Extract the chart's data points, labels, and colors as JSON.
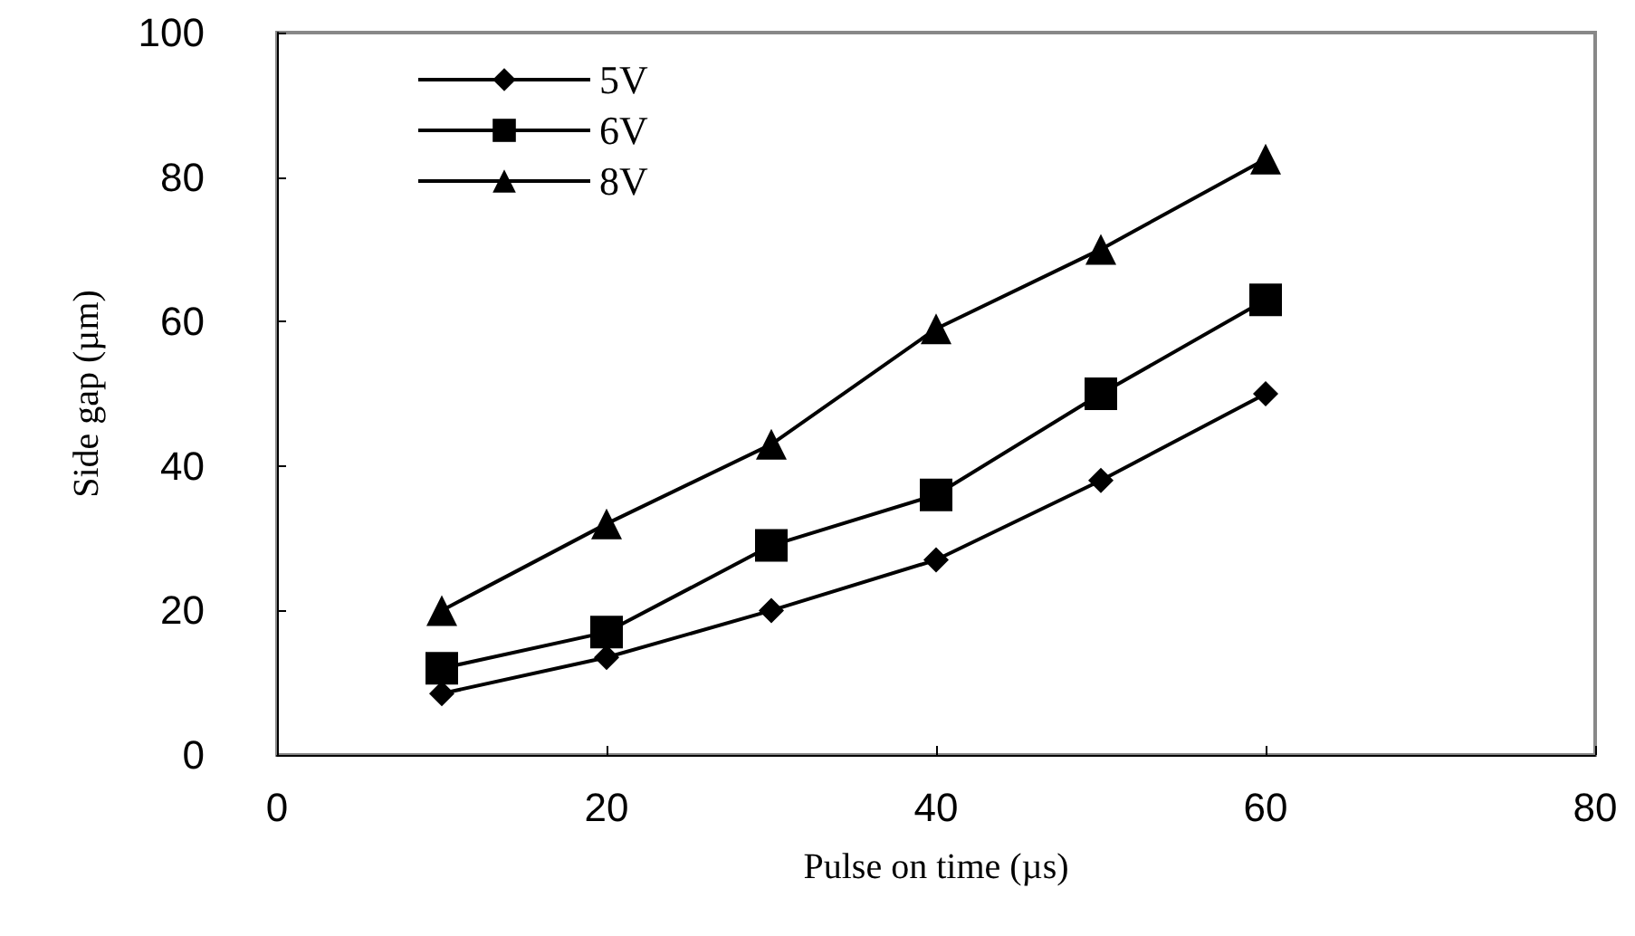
{
  "chart_data": {
    "type": "line",
    "xlabel": "Pulse on time (µs)",
    "ylabel": "Side gap (µm)",
    "x": [
      10,
      20,
      30,
      40,
      50,
      60
    ],
    "series": [
      {
        "name": "5V",
        "color": "#000000",
        "marker": "diamond",
        "values": [
          8.5,
          13.5,
          20,
          27,
          38,
          50
        ]
      },
      {
        "name": "6V",
        "color": "#000000",
        "marker": "square",
        "values": [
          12,
          17,
          29,
          36,
          50,
          63
        ]
      },
      {
        "name": "8V",
        "color": "#000000",
        "marker": "triangle",
        "values": [
          20,
          32,
          43,
          59,
          70,
          82.5
        ]
      }
    ],
    "xlim": [
      0,
      80
    ],
    "xticks": [
      0,
      20,
      40,
      60,
      80
    ],
    "ylim": [
      0,
      100
    ],
    "yticks": [
      0,
      20,
      40,
      60,
      80,
      100
    ],
    "grid": false,
    "legend": "top left",
    "line_style": "solid"
  }
}
